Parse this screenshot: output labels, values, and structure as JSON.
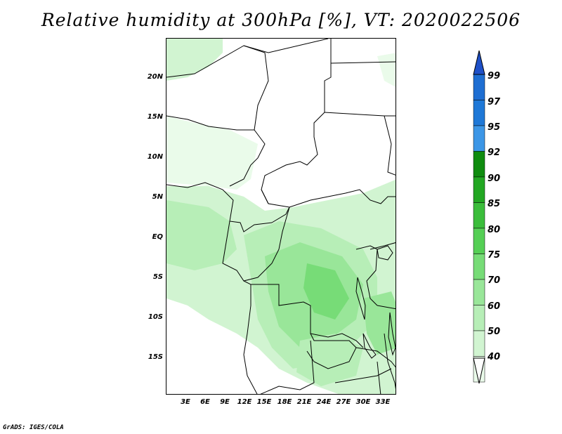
{
  "title": "Relative humidity at 300hPa [%], VT: 2020022506",
  "footer": "GrADS: IGES/COLA",
  "map": {
    "lon_ticks": [
      "3E",
      "6E",
      "9E",
      "12E",
      "15E",
      "18E",
      "21E",
      "24E",
      "27E",
      "30E",
      "33E"
    ],
    "lat_ticks": [
      "20N",
      "15N",
      "10N",
      "5N",
      "EQ",
      "5S",
      "10S",
      "15S"
    ],
    "lon_range": [
      0,
      35
    ],
    "lat_range": [
      -20,
      25
    ]
  },
  "colorbar": {
    "labels": [
      "99",
      "97",
      "95",
      "92",
      "90",
      "85",
      "80",
      "75",
      "70",
      "60",
      "50",
      "40"
    ],
    "colors": [
      "#1e6ed2",
      "#1e78d7",
      "#3c96e6",
      "#0f8c0f",
      "#22a722",
      "#3bbd3b",
      "#55cf55",
      "#77dc77",
      "#99e699",
      "#b7eeb7",
      "#d1f4d1",
      "#eafbea"
    ],
    "top_arrow_color": "#1e50c8",
    "bottom_arrow_color": "#ffffff"
  }
}
